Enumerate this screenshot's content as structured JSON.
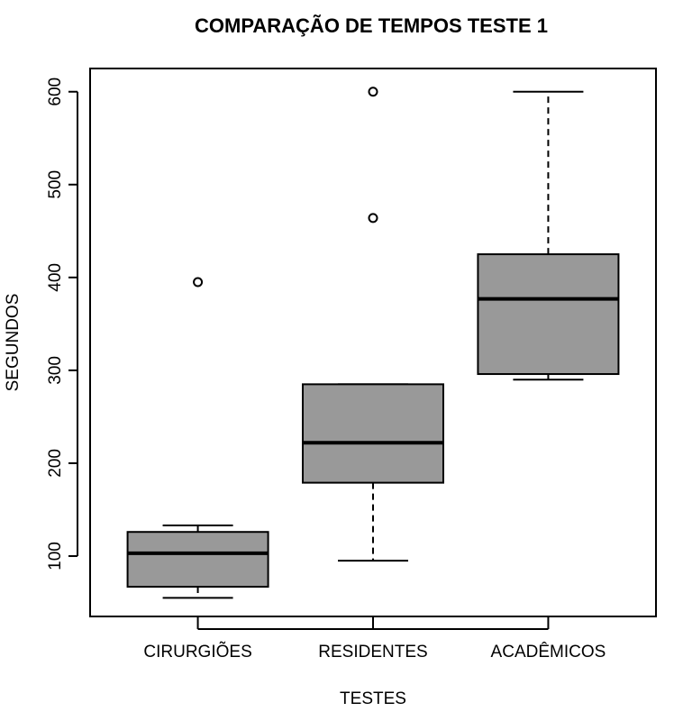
{
  "chart_data": {
    "type": "boxplot",
    "title": "COMPARAÇÃO DE TEMPOS TESTE 1",
    "xlabel": "TESTES",
    "ylabel": "SEGUNDOS",
    "ylim": [
      35,
      625
    ],
    "yticks": [
      100,
      200,
      300,
      400,
      500,
      600
    ],
    "grid": false,
    "box_color": "#999999",
    "line_color": "#000000",
    "categories": [
      "CIRURGIÕES",
      "RESIDENTES",
      "ACADÊMICOS"
    ],
    "boxes": [
      {
        "category": "CIRURGIÕES",
        "whisker_low": 55,
        "q1": 67,
        "median": 103,
        "q3": 126,
        "whisker_high": 133,
        "outliers": [
          395
        ]
      },
      {
        "category": "RESIDENTES",
        "whisker_low": 95,
        "q1": 179,
        "median": 222,
        "q3": 285,
        "whisker_high": 285,
        "outliers": [
          464,
          600
        ]
      },
      {
        "category": "ACADÊMICOS",
        "whisker_low": 290,
        "q1": 296,
        "median": 377,
        "q3": 425,
        "whisker_high": 600,
        "outliers": []
      }
    ]
  }
}
